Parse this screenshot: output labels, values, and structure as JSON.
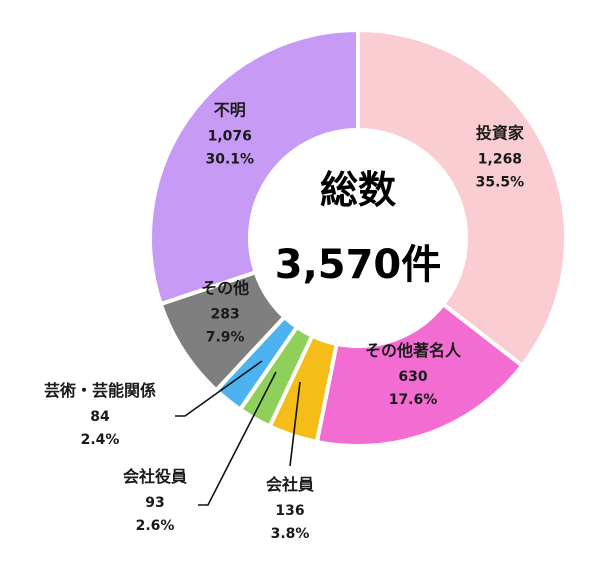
{
  "chart_data": {
    "type": "pie",
    "donut": true,
    "center_title": "総数",
    "center_total": "3,570件",
    "slices": [
      {
        "name": "投資家",
        "value": 1268,
        "value_text": "1,268",
        "percent": "35.5%",
        "color": "#F9CDD1"
      },
      {
        "name": "その他著名人",
        "value": 630,
        "value_text": "630",
        "percent": "17.6%",
        "color": "#F26CD2"
      },
      {
        "name": "会社員",
        "value": 136,
        "value_text": "136",
        "percent": "3.8%",
        "color": "#F4BD18"
      },
      {
        "name": "会社役員",
        "value": 93,
        "value_text": "93",
        "percent": "2.6%",
        "color": "#8FD05A"
      },
      {
        "name": "芸術・芸能関係",
        "value": 84,
        "value_text": "84",
        "percent": "2.4%",
        "color": "#4DB3F0"
      },
      {
        "name": "その他",
        "value": 283,
        "value_text": "283",
        "percent": "7.9%",
        "color": "#7F7F7F"
      },
      {
        "name": "不明",
        "value": 1076,
        "value_text": "1,076",
        "percent": "30.1%",
        "color": "#C79BF5"
      }
    ]
  }
}
